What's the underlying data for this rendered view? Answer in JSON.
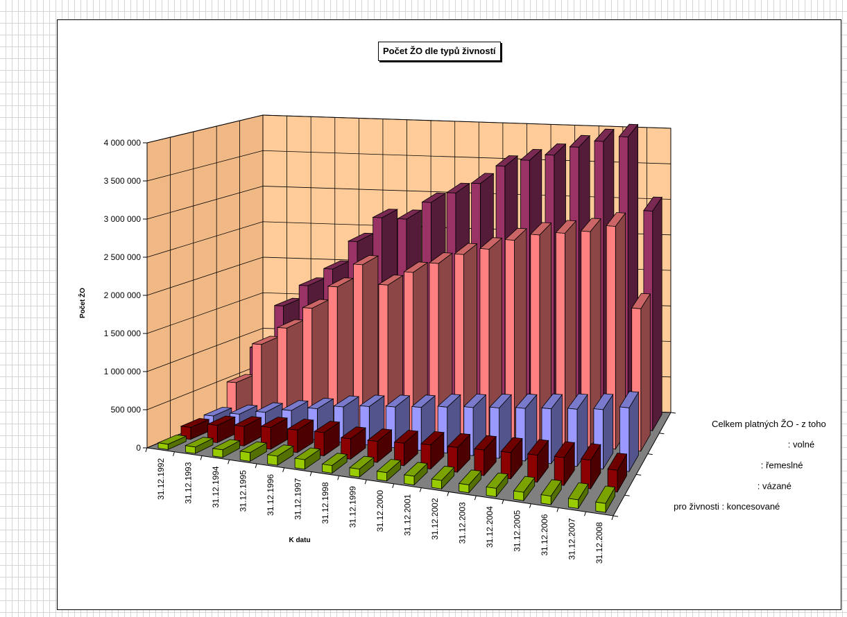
{
  "chart_data": {
    "type": "bar",
    "title": "Počet ŽO dle typů živností",
    "xlabel": "K datu",
    "ylabel": "Počet ŽO",
    "ylim": [
      0,
      4000000
    ],
    "yticks": [
      "0",
      "500 000",
      "1 000 000",
      "1 500 000",
      "2 000 000",
      "2 500 000",
      "3 000 000",
      "3 500 000",
      "4 000 000"
    ],
    "categories": [
      "31.12.1992",
      "31.12.1993",
      "31.12.1994",
      "31.12.1995",
      "31.12.1996",
      "31.12.1997",
      "31.12.1998",
      "31.12.1999",
      "31.12.2000",
      "31.12.2001",
      "31.12.2002",
      "31.12.2003",
      "31.12.2004",
      "31.12.2005",
      "31.12.2006",
      "31.12.2007",
      "31.12.2008"
    ],
    "series": [
      {
        "name": "pro živnosti  :  koncesované",
        "color": "#99cc00",
        "values": [
          70000,
          85000,
          100000,
          115000,
          120000,
          125000,
          100000,
          105000,
          110000,
          115000,
          110000,
          105000,
          110000,
          110000,
          112000,
          115000,
          118000
        ]
      },
      {
        "name": ":  vázané",
        "color": "#8b0000",
        "values": [
          160000,
          230000,
          260000,
          290000,
          300000,
          310000,
          270000,
          280000,
          300000,
          320000,
          330000,
          340000,
          350000,
          360000,
          370000,
          380000,
          290000
        ]
      },
      {
        "name": ":  řemeslné",
        "color": "#9999ff",
        "values": [
          180000,
          240000,
          300000,
          360000,
          420000,
          480000,
          520000,
          550000,
          580000,
          620000,
          650000,
          680000,
          710000,
          740000,
          770000,
          800000,
          860000
        ]
      },
      {
        "name": ":  volné",
        "color": "#ff8080",
        "values": [
          500000,
          1050000,
          1300000,
          1600000,
          1920000,
          2250000,
          2000000,
          2200000,
          2350000,
          2500000,
          2600000,
          2750000,
          2850000,
          2900000,
          2950000,
          3050000,
          1950000
        ]
      },
      {
        "name": "Celkem platných ŽO - z toho",
        "color": "#993366",
        "values": [
          850000,
          1450000,
          1750000,
          2000000,
          2400000,
          2750000,
          2750000,
          3000000,
          3150000,
          3300000,
          3560000,
          3660000,
          3750000,
          3880000,
          3980000,
          4060000,
          3050000
        ]
      }
    ],
    "grid": true,
    "legend_position": "right"
  }
}
